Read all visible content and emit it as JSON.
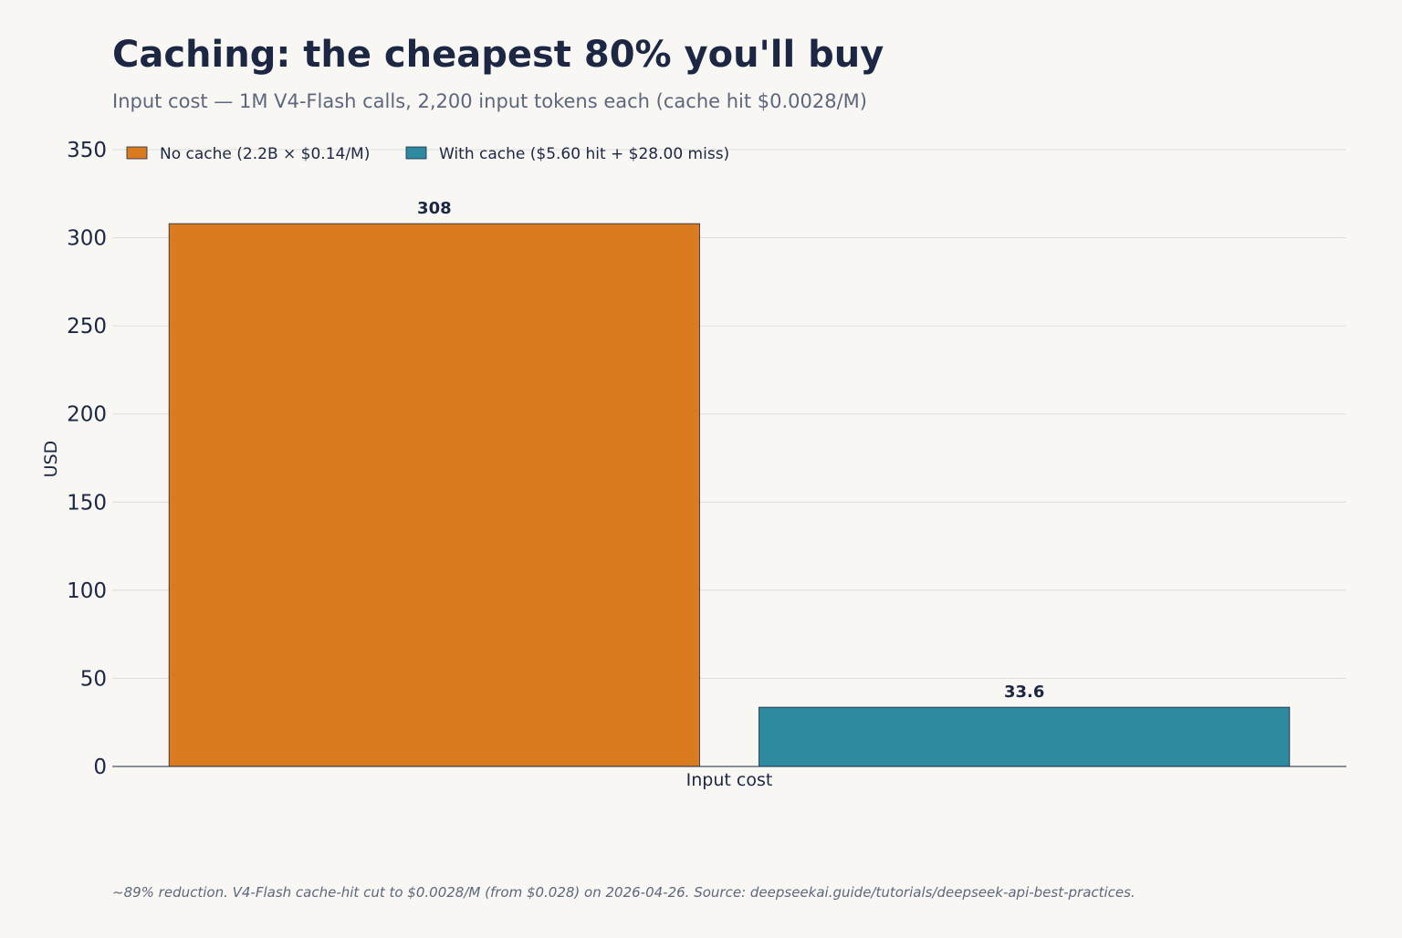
{
  "chart_data": {
    "type": "bar",
    "title": "Caching: the cheapest 80% you'll buy",
    "subtitle": "Input cost — 1M V4-Flash calls, 2,200 input tokens each (cache hit $0.0028/M)",
    "xlabel": "Input cost",
    "ylabel": "USD",
    "categories": [
      "Input cost"
    ],
    "ylim": [
      0,
      350
    ],
    "yticks": [
      0,
      50,
      100,
      150,
      200,
      250,
      300,
      350
    ],
    "grid": true,
    "legend_position": "top-left",
    "series": [
      {
        "name": "No cache (2.2B × $0.14/M)",
        "values": [
          308
        ],
        "value_labels": [
          "308"
        ],
        "color": "#d97b1e"
      },
      {
        "name": "With cache ($5.60 hit + $28.00 miss)",
        "values": [
          33.6
        ],
        "value_labels": [
          "33.6"
        ],
        "color": "#2e8a9f"
      }
    ],
    "footnote": "~89% reduction. V4-Flash cache-hit cut to $0.0028/M (from $0.028) on 2026-04-26.  Source: deepseekai.guide/tutorials/deepseek-api-best-practices."
  }
}
